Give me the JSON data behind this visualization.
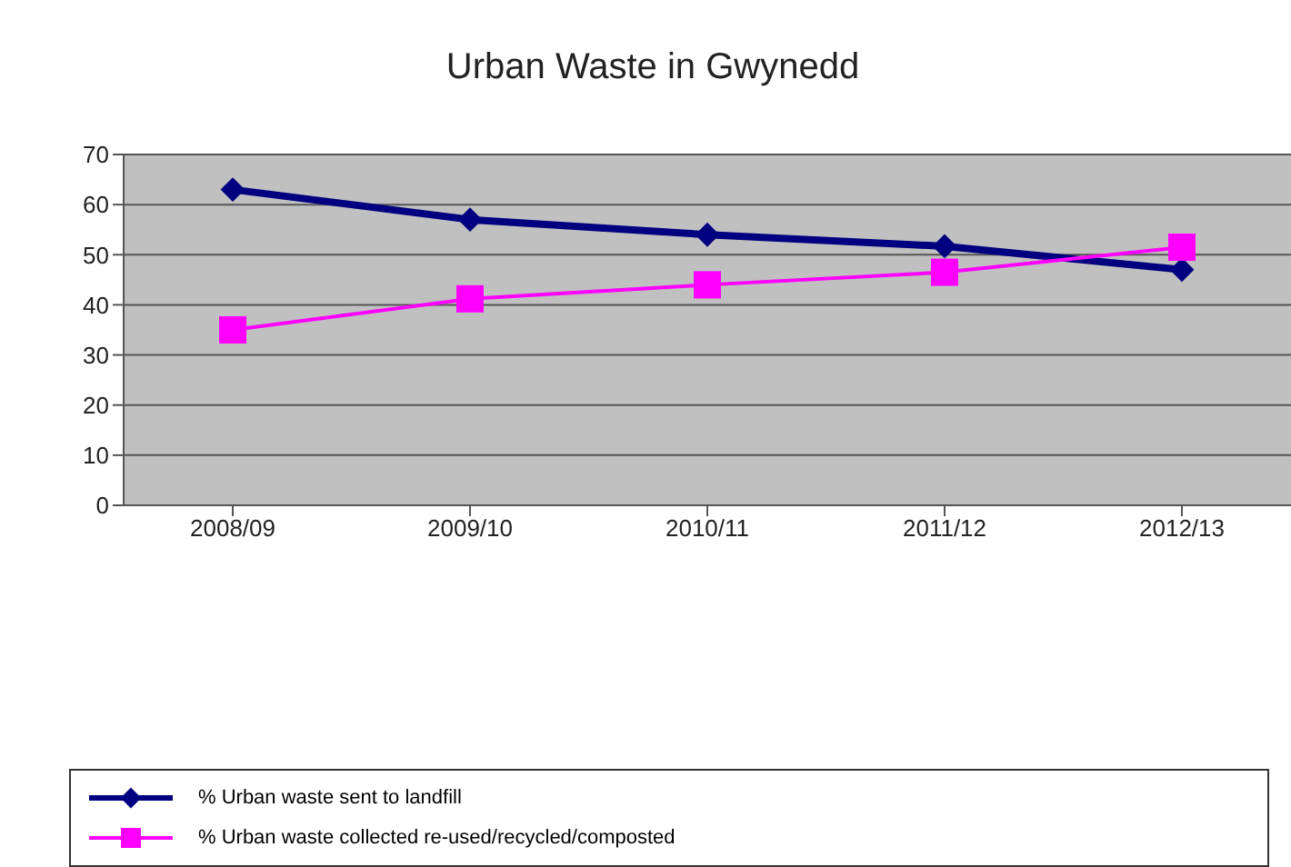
{
  "chart_data": {
    "type": "line",
    "title": "Urban Waste in Gwynedd",
    "categories": [
      "2008/09",
      "2009/10",
      "2010/11",
      "2011/12",
      "2012/13"
    ],
    "series": [
      {
        "name": "% Urban waste sent to landfill",
        "color": "#000080",
        "values": [
          63,
          57,
          54,
          51.7,
          47
        ],
        "marker": "diamond"
      },
      {
        "name": "% Urban waste collected re-used/recycled/composted",
        "color": "#ff00ff",
        "values": [
          35,
          41.2,
          44,
          46.5,
          51.5
        ],
        "marker": "square"
      }
    ],
    "ylim": [
      0,
      70
    ],
    "yticks": [
      0,
      10,
      20,
      30,
      40,
      50,
      60,
      70
    ],
    "grid": "y",
    "legend": "bottom"
  }
}
